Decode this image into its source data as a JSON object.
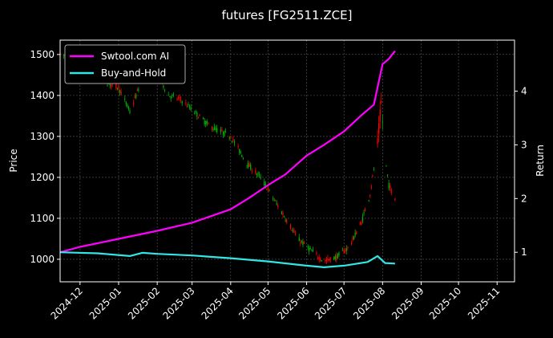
{
  "chart_data": {
    "type": "candlestick+line",
    "title": "futures [FG2511.ZCE]",
    "ylabel_left": "Price",
    "ylabel_right": "Return",
    "x_ticks": [
      "2024-12",
      "2025-01",
      "2025-02",
      "2025-03",
      "2025-04",
      "2025-05",
      "2025-06",
      "2025-07",
      "2025-08",
      "2025-09",
      "2025-10",
      "2025-11"
    ],
    "x_range": [
      "2024-11-15",
      "2025-11-15"
    ],
    "ylim_left": [
      945,
      1535
    ],
    "yticks_left": [
      1000,
      1100,
      1200,
      1300,
      1400,
      1500
    ],
    "ylim_right": [
      0.45,
      4.95
    ],
    "yticks_right": [
      1,
      2,
      3,
      4
    ],
    "grid": true,
    "legend_position": "top-left",
    "colors": {
      "up": "#ff0000",
      "down": "#00b000",
      "ai": "#ff00ff",
      "hold": "#33e6e6",
      "grid": "#5a5a5a"
    },
    "price_path": [
      [
        "2024-11-15",
        1500
      ],
      [
        "2024-12-01",
        1475
      ],
      [
        "2024-12-15",
        1440
      ],
      [
        "2025-01-01",
        1420
      ],
      [
        "2025-01-10",
        1360
      ],
      [
        "2025-01-20",
        1440
      ],
      [
        "2025-02-01",
        1455
      ],
      [
        "2025-02-10",
        1400
      ],
      [
        "2025-02-20",
        1390
      ],
      [
        "2025-03-01",
        1365
      ],
      [
        "2025-03-15",
        1325
      ],
      [
        "2025-04-01",
        1300
      ],
      [
        "2025-04-15",
        1230
      ],
      [
        "2025-04-25",
        1200
      ],
      [
        "2025-05-05",
        1150
      ],
      [
        "2025-05-15",
        1100
      ],
      [
        "2025-05-25",
        1050
      ],
      [
        "2025-06-05",
        1020
      ],
      [
        "2025-06-15",
        995
      ],
      [
        "2025-06-25",
        1005
      ],
      [
        "2025-07-05",
        1030
      ],
      [
        "2025-07-15",
        1090
      ],
      [
        "2025-07-22",
        1160
      ],
      [
        "2025-07-28",
        1280
      ],
      [
        "2025-07-31",
        1380
      ],
      [
        "2025-08-03",
        1250
      ],
      [
        "2025-08-06",
        1180
      ],
      [
        "2025-08-11",
        1150
      ]
    ],
    "series": [
      {
        "name": "Swtool.com AI",
        "points": [
          [
            "2024-11-15",
            1.0
          ],
          [
            "2024-12-01",
            1.1
          ],
          [
            "2025-01-01",
            1.25
          ],
          [
            "2025-02-01",
            1.4
          ],
          [
            "2025-03-01",
            1.55
          ],
          [
            "2025-04-01",
            1.8
          ],
          [
            "2025-04-15",
            2.0
          ],
          [
            "2025-05-01",
            2.25
          ],
          [
            "2025-05-15",
            2.45
          ],
          [
            "2025-06-01",
            2.8
          ],
          [
            "2025-06-15",
            3.0
          ],
          [
            "2025-07-01",
            3.25
          ],
          [
            "2025-07-15",
            3.55
          ],
          [
            "2025-07-25",
            3.75
          ],
          [
            "2025-08-01",
            4.5
          ],
          [
            "2025-08-06",
            4.6
          ],
          [
            "2025-08-11",
            4.75
          ]
        ]
      },
      {
        "name": "Buy-and-Hold",
        "points": [
          [
            "2024-11-15",
            1.0
          ],
          [
            "2024-12-15",
            0.98
          ],
          [
            "2025-01-10",
            0.93
          ],
          [
            "2025-01-20",
            0.99
          ],
          [
            "2025-02-01",
            0.97
          ],
          [
            "2025-03-01",
            0.94
          ],
          [
            "2025-04-01",
            0.89
          ],
          [
            "2025-05-01",
            0.83
          ],
          [
            "2025-06-01",
            0.75
          ],
          [
            "2025-06-15",
            0.72
          ],
          [
            "2025-07-01",
            0.75
          ],
          [
            "2025-07-20",
            0.82
          ],
          [
            "2025-07-28",
            0.93
          ],
          [
            "2025-08-03",
            0.8
          ],
          [
            "2025-08-11",
            0.79
          ]
        ]
      }
    ]
  }
}
